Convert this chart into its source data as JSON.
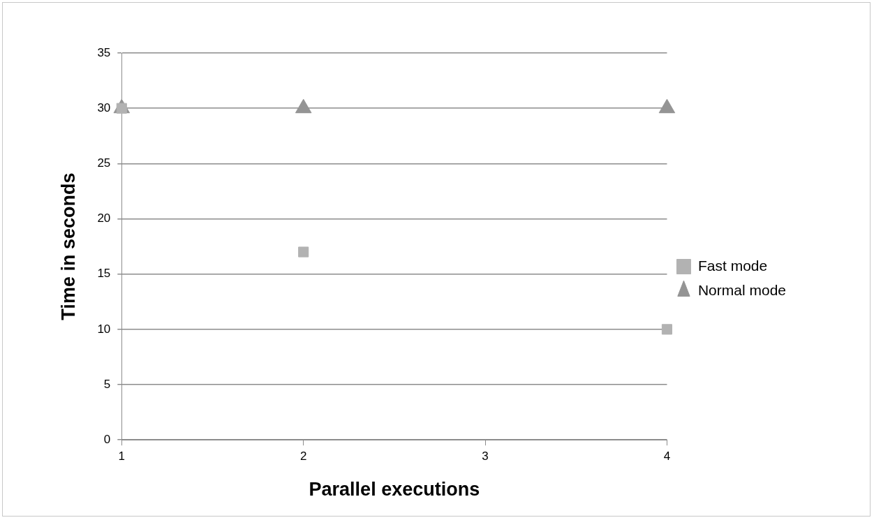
{
  "chart_data": {
    "type": "scatter",
    "xlabel": "Parallel executions",
    "ylabel": "Time in seconds",
    "x": [
      1,
      2,
      4
    ],
    "series": [
      {
        "name": "Fast mode",
        "color": "#b2b2b2",
        "marker": "square",
        "values": [
          30,
          17,
          10
        ]
      },
      {
        "name": "Normal mode",
        "color": "#949494",
        "marker": "triangle",
        "values": [
          30,
          30,
          30
        ]
      }
    ],
    "xlim": [
      1,
      4
    ],
    "xticks": [
      1,
      2,
      3,
      4
    ],
    "ylim": [
      0,
      35
    ],
    "yticks": [
      0,
      5,
      10,
      15,
      20,
      25,
      30,
      35
    ],
    "grid": "y",
    "legend": "right"
  }
}
